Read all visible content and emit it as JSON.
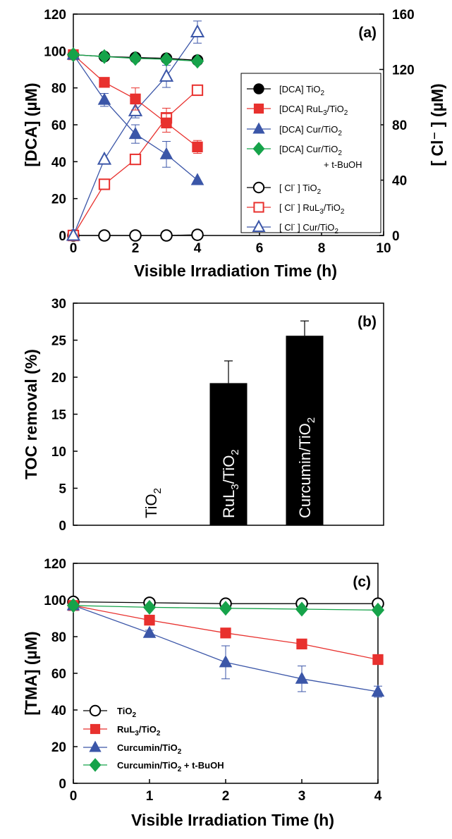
{
  "chart_data": [
    {
      "id": "a",
      "type": "line",
      "panel_label": "(a)",
      "xlabel": "Visible Irradiation Time (h)",
      "ylabel": "[DCA] (µM)",
      "y2label": "[ Cl⁻ ] (µM)",
      "xlim": [
        0,
        10
      ],
      "ylim": [
        0,
        120
      ],
      "y2lim": [
        0,
        160
      ],
      "xticks": [
        0,
        2,
        4,
        6,
        8,
        10
      ],
      "yticks": [
        0,
        20,
        40,
        60,
        80,
        100,
        120
      ],
      "y2ticks": [
        0,
        40,
        80,
        120,
        160
      ],
      "grid": false,
      "legend": "right",
      "series": [
        {
          "name": "[DCA] TiO2",
          "legend_html": "[DCA] TiO<tspan dy='4' font-size='10'>2</tspan>",
          "axis": "left",
          "marker": "circle",
          "filled": true,
          "color": "#000000",
          "x": [
            0,
            1,
            2,
            3,
            4
          ],
          "y": [
            98,
            97,
            96.5,
            96,
            95
          ],
          "err": [
            0,
            0,
            0,
            0,
            0
          ]
        },
        {
          "name": "[DCA] RuL3/TiO2",
          "legend_html": "[DCA] RuL<tspan dy='4' font-size='10'>3</tspan><tspan dy='-4'>/TiO</tspan><tspan dy='4' font-size='10'>2</tspan>",
          "axis": "left",
          "marker": "square",
          "filled": true,
          "color": "#e8312e",
          "x": [
            0,
            1,
            2,
            3,
            4
          ],
          "y": [
            98,
            83,
            74,
            61,
            48
          ],
          "err": [
            0,
            1.5,
            6,
            5,
            3.5
          ]
        },
        {
          "name": "[DCA] Cur/TiO2",
          "legend_html": "[DCA] Cur/TiO<tspan dy='4' font-size='10'>2</tspan>",
          "axis": "left",
          "marker": "triangle",
          "filled": true,
          "color": "#3b56a8",
          "x": [
            0,
            1,
            2,
            3,
            4
          ],
          "y": [
            98,
            73.5,
            55,
            44,
            30
          ],
          "err": [
            0,
            3.5,
            5,
            7,
            0
          ]
        },
        {
          "name": "[DCA] Cur/TiO2 + t-BuOH",
          "legend_html": "[DCA] Cur/TiO<tspan dy='4' font-size='10'>2</tspan>",
          "legend_line2": "+ t-BuOH",
          "axis": "left",
          "marker": "diamond",
          "filled": true,
          "color": "#16a34a",
          "x": [
            0,
            1,
            2,
            3,
            4
          ],
          "y": [
            98,
            97,
            96,
            95.5,
            94.5
          ],
          "err": [
            0,
            0,
            0,
            0,
            0
          ]
        },
        {
          "name": "[Cl-] TiO2",
          "legend_html": "[ Cl<tspan dy='-6' font-size='9'>-</tspan><tspan dy='6'> ] TiO</tspan><tspan dy='4' font-size='10'>2</tspan>",
          "axis": "right",
          "marker": "circle",
          "filled": false,
          "color": "#000000",
          "x": [
            0,
            1,
            2,
            3,
            4
          ],
          "y": [
            0,
            0,
            0,
            0,
            0.5
          ],
          "err": [
            0,
            0,
            0,
            0,
            0
          ]
        },
        {
          "name": "[Cl-] RuL3/TiO2",
          "legend_html": "[ Cl<tspan dy='-6' font-size='9'>-</tspan><tspan dy='6'> ] RuL</tspan><tspan dy='4' font-size='10'>3</tspan><tspan dy='-4'>/TiO</tspan><tspan dy='4' font-size='10'>2</tspan>",
          "axis": "right",
          "marker": "square",
          "filled": false,
          "color": "#e8312e",
          "x": [
            0,
            1,
            2,
            3,
            4
          ],
          "y": [
            0,
            37,
            55,
            85,
            105
          ],
          "err": [
            0,
            0,
            0,
            7,
            0
          ]
        },
        {
          "name": "[Cl-] Cur/TiO2",
          "legend_html": "[ Cl<tspan dy='-6' font-size='9'>-</tspan><tspan dy='6'> ] Cur/TiO</tspan><tspan dy='4' font-size='10'>2</tspan>",
          "axis": "right",
          "marker": "triangle",
          "filled": false,
          "color": "#3b56a8",
          "x": [
            0,
            1,
            2,
            3,
            4
          ],
          "y": [
            0,
            55,
            90,
            115,
            147
          ],
          "err": [
            0,
            0,
            5,
            8,
            8
          ]
        }
      ]
    },
    {
      "id": "b",
      "type": "bar",
      "panel_label": "(b)",
      "ylabel": "TOC removal (%)",
      "ylim": [
        0,
        30
      ],
      "yticks": [
        0,
        5,
        10,
        15,
        20,
        25,
        30
      ],
      "grid": false,
      "categories": [
        "TiO2",
        "RuL3/TiO2",
        "Curcumin/TiO2"
      ],
      "category_html": [
        "TiO<tspan dy='6' font-size='15'>2</tspan>",
        "RuL<tspan dy='6' font-size='15'>3</tspan><tspan dy='-6'>/TiO</tspan><tspan dy='6' font-size='15'>2</tspan>",
        "Curcumin/TiO<tspan dy='6' font-size='15'>2</tspan>"
      ],
      "values": [
        0,
        19.2,
        25.6
      ],
      "err": [
        0,
        3.0,
        2.0
      ],
      "bar_color": "#000000"
    },
    {
      "id": "c",
      "type": "line",
      "panel_label": "(c)",
      "xlabel": "Visible Irradiation Time (h)",
      "ylabel": "[TMA] (µM)",
      "xlim": [
        0,
        4
      ],
      "ylim": [
        0,
        120
      ],
      "xticks": [
        0,
        1,
        2,
        3,
        4
      ],
      "yticks": [
        0,
        20,
        40,
        60,
        80,
        100,
        120
      ],
      "grid": false,
      "legend": "bottom-left",
      "series": [
        {
          "name": "TiO2",
          "legend_html": "TiO<tspan dy='4' font-size='10'>2</tspan>",
          "marker": "circle",
          "filled": false,
          "color": "#000000",
          "x": [
            0,
            1,
            2,
            3,
            4
          ],
          "y": [
            99,
            98.5,
            98,
            98,
            98
          ],
          "err": [
            0,
            0,
            0,
            0,
            0
          ]
        },
        {
          "name": "RuL3/TiO2",
          "legend_html": "RuL<tspan dy='4' font-size='10'>3</tspan><tspan dy='-4'>/TiO</tspan><tspan dy='4' font-size='10'>2</tspan>",
          "marker": "square",
          "filled": true,
          "color": "#e8312e",
          "x": [
            0,
            1,
            2,
            3,
            4
          ],
          "y": [
            97,
            89,
            82,
            76,
            67.5
          ],
          "err": [
            0,
            0,
            0,
            0,
            0
          ]
        },
        {
          "name": "Curcumin/TiO2",
          "legend_html": "Curcumin/TiO<tspan dy='4' font-size='10'>2</tspan>",
          "marker": "triangle",
          "filled": true,
          "color": "#3b56a8",
          "x": [
            0,
            1,
            2,
            3,
            4
          ],
          "y": [
            97,
            82,
            66,
            57,
            50
          ],
          "err": [
            0,
            1.5,
            9,
            7,
            3
          ]
        },
        {
          "name": "Curcumin/TiO2 + t-BuOH",
          "legend_html": "Curcumin/TiO<tspan dy='4' font-size='10'>2</tspan><tspan dy='-4'> + t-BuOH</tspan>",
          "marker": "diamond",
          "filled": true,
          "color": "#16a34a",
          "x": [
            0,
            1,
            2,
            3,
            4
          ],
          "y": [
            97,
            96,
            95.5,
            95,
            94.5
          ],
          "err": [
            0,
            0,
            0,
            0,
            0
          ]
        }
      ]
    }
  ]
}
